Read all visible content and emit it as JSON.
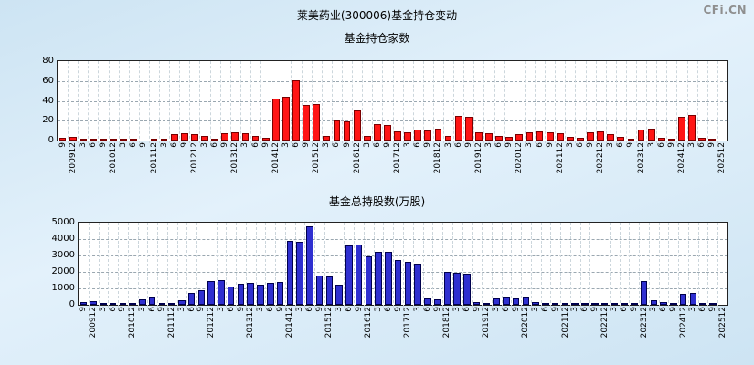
{
  "title": "莱美药业(300006)基金持仓变动",
  "watermark": "CFi.CN",
  "chart_data": [
    {
      "type": "bar",
      "title": "基金持仓家数",
      "xlabel": "",
      "ylabel": "",
      "ylim": [
        0,
        80
      ],
      "yticks": [
        0,
        20,
        40,
        60,
        80
      ],
      "grid": true,
      "bar_color": "#ff1515",
      "bar_border": "#7a0000",
      "bar_name": "fund-count-bar",
      "categories": [
        "9",
        "200912",
        "3",
        "6",
        "9",
        "201012",
        "3",
        "6",
        "9",
        "201112",
        "3",
        "6",
        "9",
        "201212",
        "3",
        "6",
        "9",
        "201312",
        "3",
        "6",
        "9",
        "201412",
        "3",
        "6",
        "9",
        "201512",
        "3",
        "6",
        "9",
        "201612",
        "3",
        "6",
        "9",
        "201712",
        "3",
        "6",
        "9",
        "201812",
        "3",
        "6",
        "9",
        "201912",
        "3",
        "6",
        "9",
        "202012",
        "3",
        "6",
        "9",
        "202112",
        "3",
        "6",
        "9",
        "202212",
        "3",
        "6",
        "9",
        "202312",
        "3",
        "6",
        "9",
        "202412",
        "3",
        "6",
        "9",
        "202512"
      ],
      "values": [
        3,
        4,
        1,
        1,
        1,
        1,
        2,
        1,
        0,
        1,
        1,
        6,
        7,
        6,
        5,
        2,
        7,
        8,
        7,
        5,
        3,
        42,
        44,
        61,
        36,
        37,
        5,
        20,
        19,
        30,
        5,
        17,
        16,
        9,
        8,
        11,
        10,
        12,
        5,
        25,
        24,
        8,
        7,
        5,
        4,
        6,
        8,
        9,
        8,
        7,
        4,
        3,
        8,
        9,
        6,
        4,
        2,
        11,
        12,
        3,
        2,
        24,
        26,
        3,
        2,
        0
      ]
    },
    {
      "type": "bar",
      "title": "基金总持股数(万股)",
      "xlabel": "",
      "ylabel": "",
      "ylim": [
        0,
        5000
      ],
      "yticks": [
        0,
        1000,
        2000,
        3000,
        4000,
        5000
      ],
      "grid": true,
      "bar_color": "#2f2fd0",
      "bar_border": "#00004d",
      "bar_name": "fund-shares-bar",
      "categories": [
        "9",
        "200912",
        "3",
        "6",
        "9",
        "201012",
        "3",
        "6",
        "9",
        "201112",
        "3",
        "6",
        "9",
        "201212",
        "3",
        "6",
        "9",
        "201312",
        "3",
        "6",
        "9",
        "201412",
        "3",
        "6",
        "9",
        "201512",
        "3",
        "6",
        "9",
        "201612",
        "3",
        "6",
        "9",
        "201712",
        "3",
        "6",
        "9",
        "201812",
        "3",
        "6",
        "9",
        "201912",
        "3",
        "6",
        "9",
        "202012",
        "3",
        "6",
        "9",
        "202112",
        "3",
        "6",
        "9",
        "202212",
        "3",
        "6",
        "9",
        "202312",
        "3",
        "6",
        "9",
        "202412",
        "3",
        "6",
        "9",
        "202512"
      ],
      "values": [
        150,
        250,
        100,
        80,
        60,
        120,
        350,
        420,
        60,
        80,
        300,
        700,
        900,
        1450,
        1500,
        1100,
        1300,
        1350,
        1250,
        1350,
        1400,
        3900,
        3850,
        4800,
        1800,
        1750,
        1250,
        3600,
        3650,
        2950,
        3250,
        3200,
        2700,
        2600,
        2500,
        400,
        350,
        2000,
        1950,
        1900,
        150,
        100,
        400,
        450,
        400,
        450,
        150,
        100,
        80,
        60,
        50,
        40,
        60,
        80,
        100,
        90,
        70,
        1450,
        300,
        150,
        100,
        650,
        700,
        100,
        60,
        0
      ]
    }
  ]
}
